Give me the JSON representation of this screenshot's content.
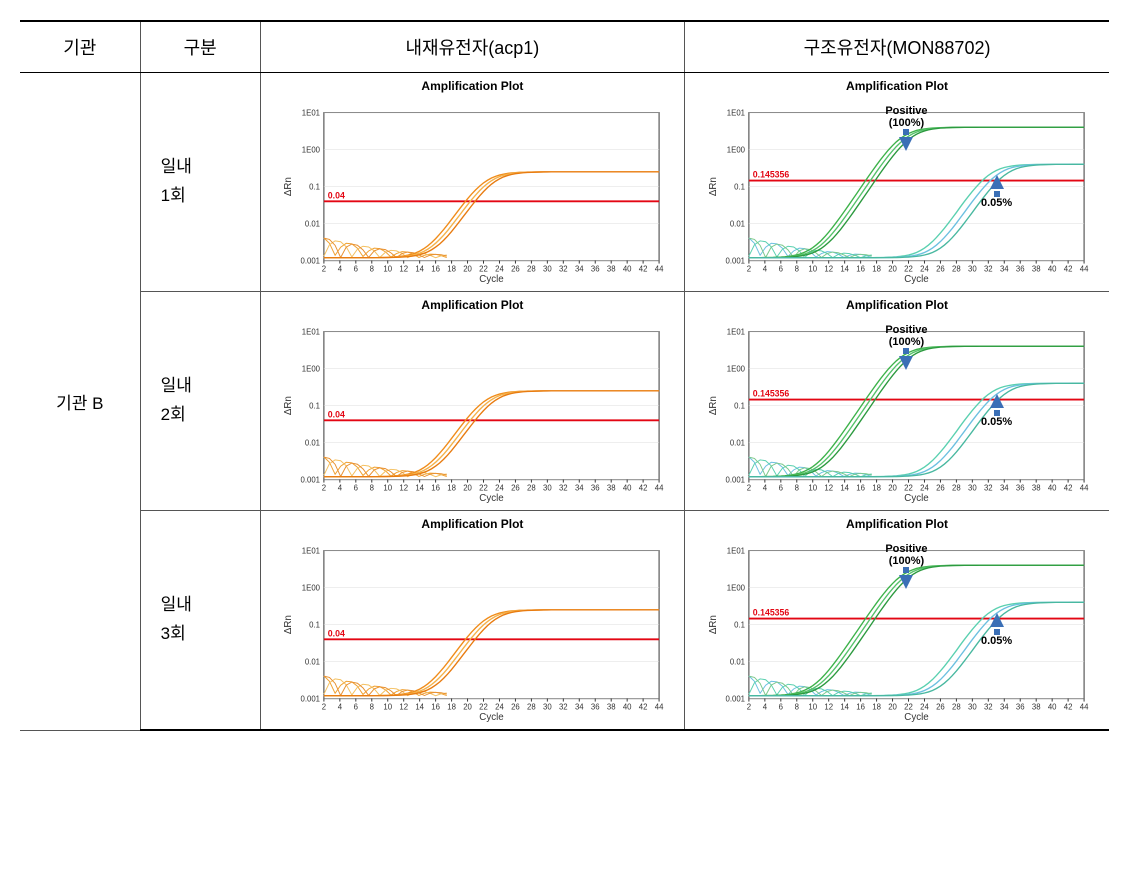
{
  "headers": {
    "org": "기관",
    "trial": "구분",
    "col_acp1": "내재유전자(acp1)",
    "col_mon": "구조유전자(MON88702)"
  },
  "org_label": "기관 B",
  "trials": [
    {
      "line1": "일내",
      "line2": "1회"
    },
    {
      "line1": "일내",
      "line2": "2회"
    },
    {
      "line1": "일내",
      "line2": "3회"
    }
  ],
  "plot_common": {
    "title": "Amplification Plot",
    "xlabel": "Cycle",
    "ylabel": "ΔRn",
    "x_min": 2,
    "x_max": 44,
    "x_tick_step": 2,
    "y_ticks": [
      0.001,
      0.01,
      0.1,
      1,
      10
    ],
    "y_tick_labels": [
      "0.001",
      "0.01",
      "0.1",
      "1E00",
      "1E01"
    ],
    "bg": "#ffffff",
    "grid_color": "#dddddd",
    "axis_color": "#333333",
    "tick_fontsize": 8,
    "label_fontsize": 10,
    "title_fontsize": 12
  },
  "acp1_plot": {
    "threshold": 0.04,
    "threshold_label": "0.04",
    "threshold_color": "#e30613",
    "curves": [
      {
        "color": "#f08c1a",
        "ct": 22.0
      },
      {
        "color": "#f4b24a",
        "ct": 22.6
      },
      {
        "color": "#e87b10",
        "ct": 23.2
      }
    ],
    "plateau": 0.25,
    "noise_color": "#f0a030"
  },
  "mon_plot": {
    "threshold": 0.145356,
    "threshold_label": "0.145356",
    "threshold_color": "#e30613",
    "positive_group": {
      "label_line1": "Positive",
      "label_line2": "(100%)",
      "curves": [
        {
          "color": "#3db24a",
          "ct": 21.0
        },
        {
          "color": "#55c26a",
          "ct": 21.6
        },
        {
          "color": "#2c9a3f",
          "ct": 22.2
        }
      ],
      "plateau": 4.0
    },
    "low_group": {
      "label": "0.05%",
      "curves": [
        {
          "color": "#5ad0b0",
          "ct": 32.0
        },
        {
          "color": "#6cc0e0",
          "ct": 33.0
        },
        {
          "color": "#48b8a0",
          "ct": 34.0
        }
      ],
      "plateau": 0.4
    },
    "noise_colors": [
      "#6cc0e0",
      "#5ad0b0",
      "#7ac88a"
    ]
  }
}
